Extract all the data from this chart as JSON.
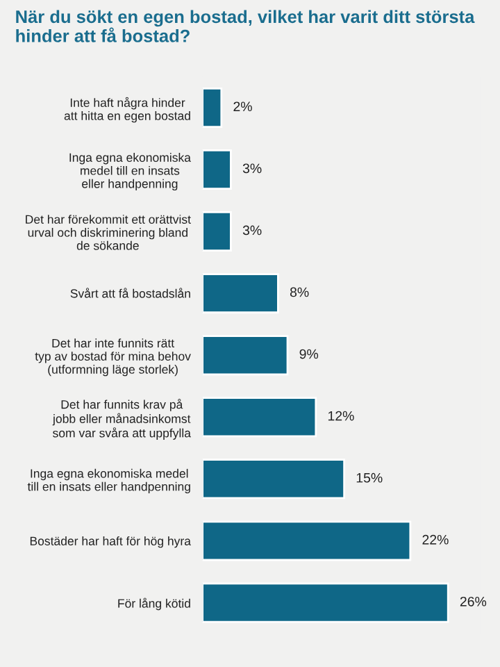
{
  "chart_data": {
    "type": "bar",
    "orientation": "horizontal",
    "title": "När du sökt en egen bostad, vilket har varit ditt största hinder att få bostad?",
    "categories": [
      "Inte haft några hinder\natt hitta en egen bostad",
      "Inga egna ekonomiska\nmedel till en insats\neller handpenning",
      "Det har förekommit ett orättvist\nurval och diskriminering bland\nde sökande",
      "Svårt att få bostadslån",
      "Det har inte funnits rätt\ntyp av bostad för mina behov\n(utformning läge storlek)",
      "Det har funnits krav på\njobb eller månadsinkomst\nsom var svåra att uppfylla",
      "Inga egna ekonomiska medel\ntill en insats eller handpenning",
      "Bostäder har haft för hög hyra",
      "För lång kötid"
    ],
    "values": [
      2,
      3,
      3,
      8,
      9,
      12,
      15,
      22,
      26
    ],
    "value_labels": [
      "2%",
      "3%",
      "3%",
      "8%",
      "9%",
      "12%",
      "15%",
      "22%",
      "26%"
    ],
    "color": "#0f6787"
  }
}
